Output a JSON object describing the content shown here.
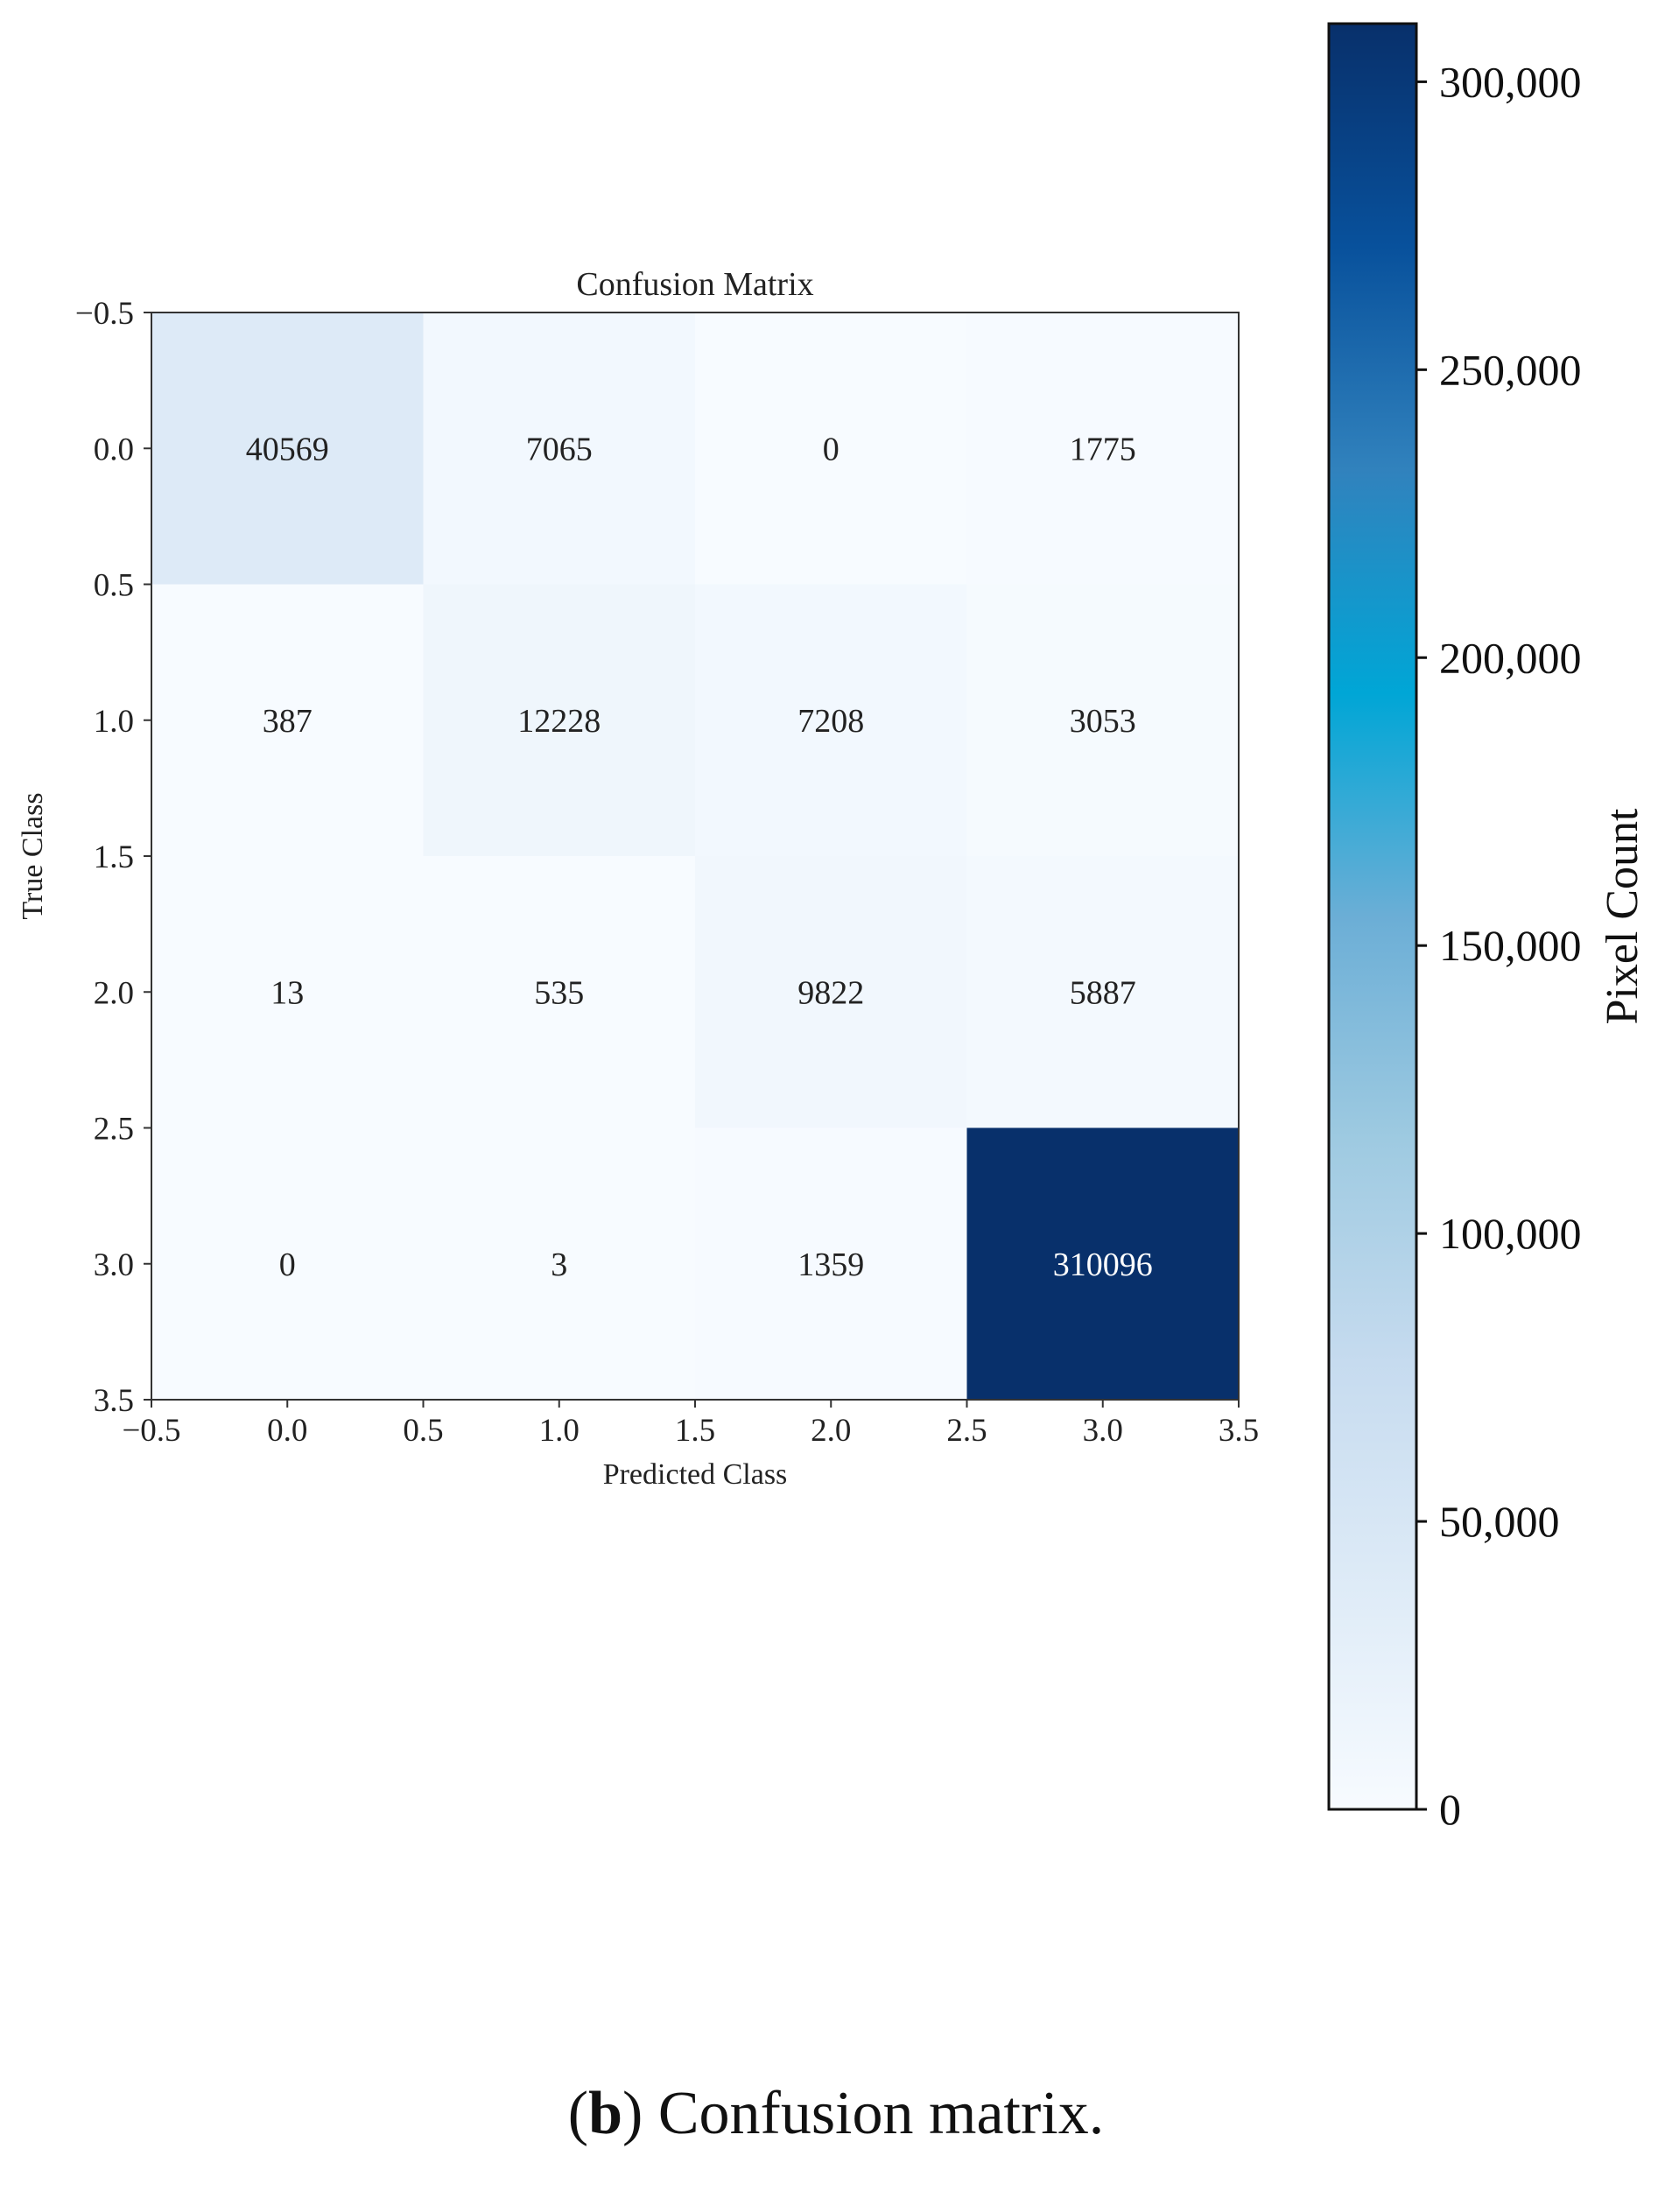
{
  "chart_data": {
    "type": "heatmap",
    "title": "Confusion Matrix",
    "xlabel": "Predicted Class",
    "ylabel": "True Class",
    "x_ticks": [
      "−0.5",
      "0.0",
      "0.5",
      "1.0",
      "1.5",
      "2.0",
      "2.5",
      "3.0",
      "3.5"
    ],
    "y_ticks": [
      "−0.5",
      "0.0",
      "0.5",
      "1.0",
      "1.5",
      "2.0",
      "2.5",
      "3.0",
      "3.5"
    ],
    "xlim": [
      -0.5,
      3.5
    ],
    "ylim": [
      3.5,
      -0.5
    ],
    "matrix": [
      [
        40569,
        7065,
        0,
        1775
      ],
      [
        387,
        12228,
        7208,
        3053
      ],
      [
        13,
        535,
        9822,
        5887
      ],
      [
        0,
        3,
        1359,
        310096
      ]
    ],
    "colorbar": {
      "label": "Pixel Count",
      "range": [
        0,
        310096
      ],
      "ticks": [
        {
          "value": 0,
          "label": "0"
        },
        {
          "value": 50000,
          "label": "50,000"
        },
        {
          "value": 100000,
          "label": "100,000"
        },
        {
          "value": 150000,
          "label": "150,000"
        },
        {
          "value": 200000,
          "label": "200,000"
        },
        {
          "value": 250000,
          "label": "250,000"
        },
        {
          "value": 300000,
          "label": "300,000"
        }
      ]
    },
    "colormap": [
      "#f7fbff",
      "#deebf7",
      "#c6dbef",
      "#9ecae1",
      "#6baed6",
      "#00a6d6",
      "#3182bd",
      "#08519c",
      "#08306b"
    ],
    "grid": false
  },
  "caption": {
    "label": "b",
    "text": " Confusion matrix."
  }
}
